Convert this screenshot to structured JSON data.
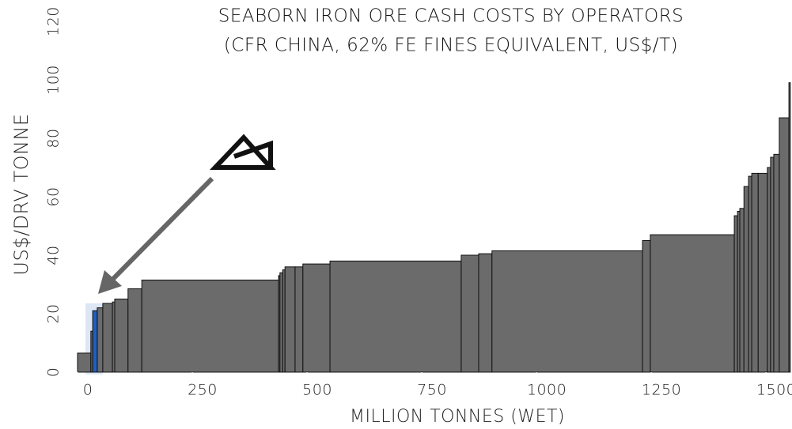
{
  "chart_data": {
    "type": "histogram",
    "title": "SEABORN IRON ORE CASH COSTS BY OPERATORS",
    "subtitle": "(CFR CHINA, 62% FE FINES EQUIVALENT, US$/T)",
    "x_label": "MILLION TONNES (WET)",
    "y_label": "US$/DRV TONNE",
    "bins": [
      0,
      29,
      33,
      43,
      55,
      76,
      81,
      110,
      140,
      438,
      441,
      447,
      452,
      474,
      491,
      550,
      836,
      874,
      903,
      1231,
      1248,
      1431,
      1438,
      1443,
      1452,
      1462,
      1469,
      1483,
      1503,
      1510,
      1517,
      1529,
      1550,
      1553
    ],
    "values": [
      6.5,
      14,
      21,
      22,
      23.5,
      24,
      25,
      28.5,
      31.5,
      33,
      34,
      35,
      36,
      36,
      37,
      38,
      40,
      40.5,
      41.5,
      45,
      47,
      53.5,
      55,
      56,
      63.5,
      67,
      68,
      68,
      70,
      73.5,
      74.5,
      87,
      99
    ],
    "colors": [
      "#6b6b6b",
      "#6b6b6b",
      "#1f5fbf",
      "#6b6b6b",
      "#6b6b6b",
      "#6b6b6b",
      "#6b6b6b",
      "#6b6b6b",
      "#6b6b6b",
      "#6b6b6b",
      "#6b6b6b",
      "#6b6b6b",
      "#6b6b6b",
      "#6b6b6b",
      "#6b6b6b",
      "#6b6b6b",
      "#6b6b6b",
      "#6b6b6b",
      "#6b6b6b",
      "#6b6b6b",
      "#6b6b6b",
      "#6b6b6b",
      "#6b6b6b",
      "#6b6b6b",
      "#6b6b6b",
      "#6b6b6b",
      "#6b6b6b",
      "#6b6b6b",
      "#6b6b6b",
      "#6b6b6b",
      "#6b6b6b",
      "#6b6b6b",
      "#6b6b6b"
    ],
    "xlim": [
      0,
      1555
    ],
    "ylim": [
      0,
      120
    ],
    "xticks": [
      0,
      250,
      500,
      750,
      1000,
      1250,
      1500
    ],
    "yticks": [
      0,
      20,
      40,
      60,
      80,
      100,
      120
    ]
  }
}
